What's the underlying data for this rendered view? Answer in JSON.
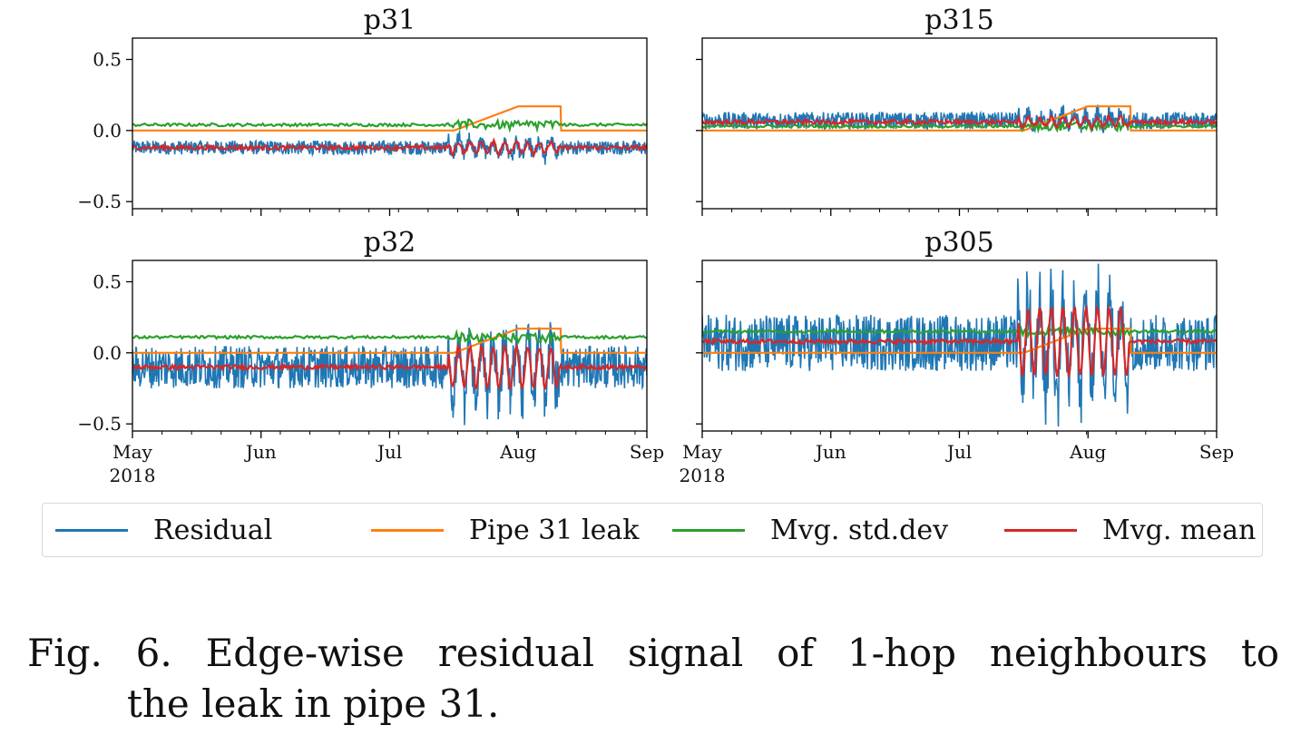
{
  "chart_data": [
    {
      "type": "line",
      "title": "p31",
      "ylim": [
        -0.55,
        0.65
      ],
      "yticks": [
        "0.5",
        "0.0",
        "−0.5"
      ],
      "ytick_values": [
        0.5,
        0.0,
        -0.5
      ],
      "xtick_labels": [],
      "series": [
        {
          "name": "Residual",
          "color": "#1f77b4",
          "baseline": -0.12,
          "noise": 0.05,
          "leak_amp": 0.05
        },
        {
          "name": "Pipe 31 leak",
          "color": "#ff7f0e"
        },
        {
          "name": "Mvg. std.dev",
          "color": "#2ca02c",
          "level": 0.04
        },
        {
          "name": "Mvg. mean",
          "color": "#d62728",
          "baseline": -0.12
        }
      ]
    },
    {
      "type": "line",
      "title": "p315",
      "ylim": [
        -0.55,
        0.65
      ],
      "yticks": [],
      "xtick_labels": [],
      "series": [
        {
          "name": "Residual",
          "color": "#1f77b4",
          "baseline": 0.07,
          "noise": 0.06,
          "leak_amp": 0.04
        },
        {
          "name": "Pipe 31 leak",
          "color": "#ff7f0e"
        },
        {
          "name": "Mvg. std.dev",
          "color": "#2ca02c",
          "level": 0.03
        },
        {
          "name": "Mvg. mean",
          "color": "#d62728",
          "baseline": 0.06
        }
      ]
    },
    {
      "type": "line",
      "title": "p32",
      "ylim": [
        -0.55,
        0.65
      ],
      "yticks": [
        "0.5",
        "0.0",
        "−0.5"
      ],
      "ytick_values": [
        0.5,
        0.0,
        -0.5
      ],
      "xtick_labels": [
        "May\n2018",
        "Jun",
        "Jul",
        "Aug",
        "Sep"
      ],
      "series": [
        {
          "name": "Residual",
          "color": "#1f77b4",
          "baseline": -0.1,
          "noise": 0.15,
          "leak_amp": 0.18
        },
        {
          "name": "Pipe 31 leak",
          "color": "#ff7f0e"
        },
        {
          "name": "Mvg. std.dev",
          "color": "#2ca02c",
          "level": 0.11
        },
        {
          "name": "Mvg. mean",
          "color": "#d62728",
          "baseline": -0.1
        }
      ]
    },
    {
      "type": "line",
      "title": "p305",
      "ylim": [
        -0.55,
        0.65
      ],
      "yticks": [],
      "xtick_labels": [
        "May\n2018",
        "Jun",
        "Jul",
        "Aug",
        "Sep"
      ],
      "series": [
        {
          "name": "Residual",
          "color": "#1f77b4",
          "baseline": 0.07,
          "noise": 0.2,
          "leak_amp": 0.3
        },
        {
          "name": "Pipe 31 leak",
          "color": "#ff7f0e"
        },
        {
          "name": "Mvg. std.dev",
          "color": "#2ca02c",
          "level": 0.15
        },
        {
          "name": "Mvg. mean",
          "color": "#d62728",
          "baseline": 0.08
        }
      ]
    }
  ],
  "leak": {
    "start_month": 2.5,
    "peak_month": 3.0,
    "end_month": 3.33,
    "peak_value": 0.17
  },
  "legend": [
    {
      "label": "Residual",
      "color": "#1f77b4"
    },
    {
      "label": "Pipe 31 leak",
      "color": "#ff7f0e"
    },
    {
      "label": "Mvg. std.dev",
      "color": "#2ca02c"
    },
    {
      "label": "Mvg. mean",
      "color": "#d62728"
    }
  ],
  "caption": {
    "line1": "Fig. 6. Edge-wise residual signal of 1-hop neighbours to",
    "line2": "the leak in pipe 31."
  }
}
